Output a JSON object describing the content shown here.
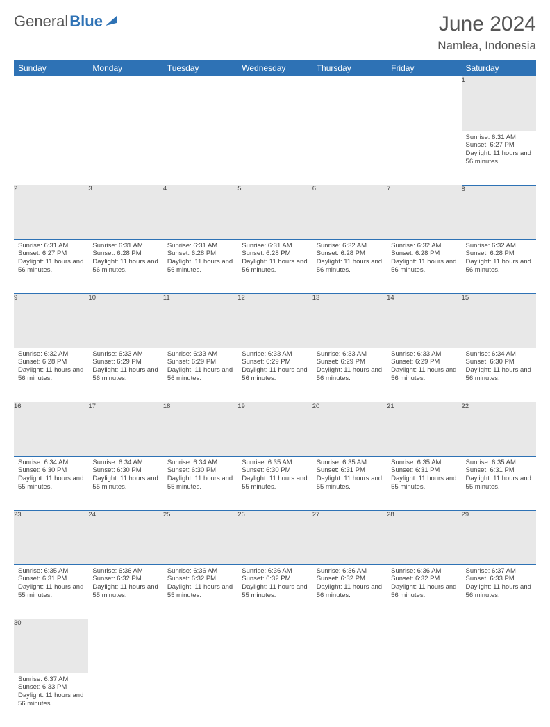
{
  "brand": {
    "part1": "General",
    "part2": "Blue"
  },
  "title": "June 2024",
  "location": "Namlea, Indonesia",
  "colors": {
    "header_bg": "#2e72b5",
    "header_fg": "#ffffff",
    "daynum_bg": "#e8e8e8",
    "rule": "#2e72b5",
    "text": "#444444",
    "title": "#555555"
  },
  "dayNames": [
    "Sunday",
    "Monday",
    "Tuesday",
    "Wednesday",
    "Thursday",
    "Friday",
    "Saturday"
  ],
  "weeks": [
    [
      null,
      null,
      null,
      null,
      null,
      null,
      {
        "n": 1,
        "sunrise": "6:31 AM",
        "sunset": "6:27 PM",
        "daylight": "11 hours and 56 minutes."
      }
    ],
    [
      {
        "n": 2,
        "sunrise": "6:31 AM",
        "sunset": "6:27 PM",
        "daylight": "11 hours and 56 minutes."
      },
      {
        "n": 3,
        "sunrise": "6:31 AM",
        "sunset": "6:28 PM",
        "daylight": "11 hours and 56 minutes."
      },
      {
        "n": 4,
        "sunrise": "6:31 AM",
        "sunset": "6:28 PM",
        "daylight": "11 hours and 56 minutes."
      },
      {
        "n": 5,
        "sunrise": "6:31 AM",
        "sunset": "6:28 PM",
        "daylight": "11 hours and 56 minutes."
      },
      {
        "n": 6,
        "sunrise": "6:32 AM",
        "sunset": "6:28 PM",
        "daylight": "11 hours and 56 minutes."
      },
      {
        "n": 7,
        "sunrise": "6:32 AM",
        "sunset": "6:28 PM",
        "daylight": "11 hours and 56 minutes."
      },
      {
        "n": 8,
        "sunrise": "6:32 AM",
        "sunset": "6:28 PM",
        "daylight": "11 hours and 56 minutes."
      }
    ],
    [
      {
        "n": 9,
        "sunrise": "6:32 AM",
        "sunset": "6:28 PM",
        "daylight": "11 hours and 56 minutes."
      },
      {
        "n": 10,
        "sunrise": "6:33 AM",
        "sunset": "6:29 PM",
        "daylight": "11 hours and 56 minutes."
      },
      {
        "n": 11,
        "sunrise": "6:33 AM",
        "sunset": "6:29 PM",
        "daylight": "11 hours and 56 minutes."
      },
      {
        "n": 12,
        "sunrise": "6:33 AM",
        "sunset": "6:29 PM",
        "daylight": "11 hours and 56 minutes."
      },
      {
        "n": 13,
        "sunrise": "6:33 AM",
        "sunset": "6:29 PM",
        "daylight": "11 hours and 56 minutes."
      },
      {
        "n": 14,
        "sunrise": "6:33 AM",
        "sunset": "6:29 PM",
        "daylight": "11 hours and 56 minutes."
      },
      {
        "n": 15,
        "sunrise": "6:34 AM",
        "sunset": "6:30 PM",
        "daylight": "11 hours and 56 minutes."
      }
    ],
    [
      {
        "n": 16,
        "sunrise": "6:34 AM",
        "sunset": "6:30 PM",
        "daylight": "11 hours and 55 minutes."
      },
      {
        "n": 17,
        "sunrise": "6:34 AM",
        "sunset": "6:30 PM",
        "daylight": "11 hours and 55 minutes."
      },
      {
        "n": 18,
        "sunrise": "6:34 AM",
        "sunset": "6:30 PM",
        "daylight": "11 hours and 55 minutes."
      },
      {
        "n": 19,
        "sunrise": "6:35 AM",
        "sunset": "6:30 PM",
        "daylight": "11 hours and 55 minutes."
      },
      {
        "n": 20,
        "sunrise": "6:35 AM",
        "sunset": "6:31 PM",
        "daylight": "11 hours and 55 minutes."
      },
      {
        "n": 21,
        "sunrise": "6:35 AM",
        "sunset": "6:31 PM",
        "daylight": "11 hours and 55 minutes."
      },
      {
        "n": 22,
        "sunrise": "6:35 AM",
        "sunset": "6:31 PM",
        "daylight": "11 hours and 55 minutes."
      }
    ],
    [
      {
        "n": 23,
        "sunrise": "6:35 AM",
        "sunset": "6:31 PM",
        "daylight": "11 hours and 55 minutes."
      },
      {
        "n": 24,
        "sunrise": "6:36 AM",
        "sunset": "6:32 PM",
        "daylight": "11 hours and 55 minutes."
      },
      {
        "n": 25,
        "sunrise": "6:36 AM",
        "sunset": "6:32 PM",
        "daylight": "11 hours and 55 minutes."
      },
      {
        "n": 26,
        "sunrise": "6:36 AM",
        "sunset": "6:32 PM",
        "daylight": "11 hours and 55 minutes."
      },
      {
        "n": 27,
        "sunrise": "6:36 AM",
        "sunset": "6:32 PM",
        "daylight": "11 hours and 56 minutes."
      },
      {
        "n": 28,
        "sunrise": "6:36 AM",
        "sunset": "6:32 PM",
        "daylight": "11 hours and 56 minutes."
      },
      {
        "n": 29,
        "sunrise": "6:37 AM",
        "sunset": "6:33 PM",
        "daylight": "11 hours and 56 minutes."
      }
    ],
    [
      {
        "n": 30,
        "sunrise": "6:37 AM",
        "sunset": "6:33 PM",
        "daylight": "11 hours and 56 minutes."
      },
      null,
      null,
      null,
      null,
      null,
      null
    ]
  ],
  "labels": {
    "sunrise": "Sunrise:",
    "sunset": "Sunset:",
    "daylight": "Daylight:"
  }
}
